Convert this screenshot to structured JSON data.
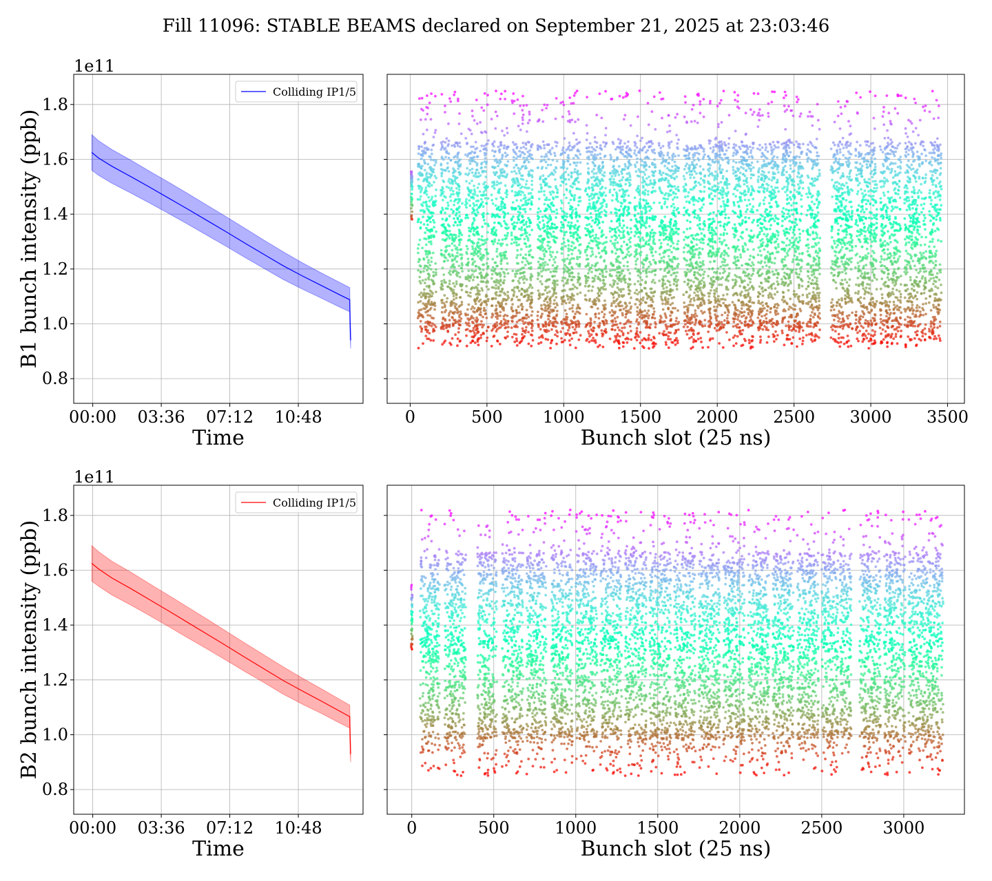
{
  "figure": {
    "suptitle": "Fill 11096: STABLE BEAMS declared on September 21, 2025 at 23:03:46"
  },
  "chart_data": [
    {
      "id": "b1-time",
      "type": "line",
      "beam": "B1",
      "color": "#0000ff",
      "xlabel": "Time",
      "ylabel": "B1 bunch intensity (ppb)",
      "y_offset_text": "1e11",
      "x_unit": "hours from 00:00",
      "xlim": [
        -1.0,
        14.2
      ],
      "ylim": [
        0.71,
        1.91
      ],
      "xticks": [
        0,
        3.6,
        7.2,
        10.8
      ],
      "xtick_labels": [
        "00:00",
        "03:36",
        "07:12",
        "10:48"
      ],
      "yticks": [
        0.8,
        1.0,
        1.2,
        1.4,
        1.6,
        1.8
      ],
      "ytick_labels": [
        "0.8",
        "1.0",
        "1.2",
        "1.4",
        "1.6",
        "1.8"
      ],
      "legend": {
        "label": "Colliding IP1/5",
        "position": "upper right"
      },
      "grid": true,
      "series": [
        {
          "name": "Colliding IP1/5",
          "x": [
            -0.05,
            0.3,
            1.0,
            2.0,
            3.0,
            4.0,
            5.0,
            6.0,
            7.0,
            8.0,
            9.0,
            10.0,
            11.0,
            12.0,
            13.0,
            13.5,
            13.52,
            13.55
          ],
          "y": [
            1.625,
            1.605,
            1.575,
            1.537,
            1.498,
            1.458,
            1.418,
            1.377,
            1.336,
            1.294,
            1.253,
            1.212,
            1.175,
            1.14,
            1.105,
            1.088,
            1.0,
            0.94
          ],
          "band_upper": [
            1.69,
            1.668,
            1.636,
            1.597,
            1.556,
            1.516,
            1.475,
            1.433,
            1.391,
            1.348,
            1.305,
            1.263,
            1.223,
            1.186,
            1.15,
            1.132,
            1.05,
            0.98
          ],
          "band_lower": [
            1.56,
            1.542,
            1.513,
            1.477,
            1.44,
            1.402,
            1.363,
            1.323,
            1.283,
            1.242,
            1.202,
            1.162,
            1.127,
            1.094,
            1.06,
            1.044,
            0.95,
            0.91
          ]
        }
      ]
    },
    {
      "id": "b1-bunch",
      "type": "scatter",
      "beam": "B1",
      "xlabel": "Bunch slot (25 ns)",
      "ylabel": "",
      "xlim": [
        -150,
        3610
      ],
      "ylim": [
        0.71,
        1.91
      ],
      "xticks": [
        0,
        500,
        1000,
        1500,
        2000,
        2500,
        3000,
        3500
      ],
      "xtick_labels": [
        "0",
        "500",
        "1000",
        "1500",
        "2000",
        "2500",
        "3000",
        "3500"
      ],
      "yticks": [
        0.8,
        1.0,
        1.2,
        1.4,
        1.6,
        1.8
      ],
      "grid": true,
      "colormap": "rainbow",
      "pilot": {
        "slot": 10,
        "ymin": 1.37,
        "ymax": 1.58
      },
      "intensity_range": [
        0.91,
        1.85
      ],
      "trains": [
        {
          "start": 50,
          "end": 170
        },
        {
          "start": 200,
          "end": 340
        },
        {
          "start": 360,
          "end": 510
        },
        {
          "start": 530,
          "end": 640
        },
        {
          "start": 660,
          "end": 800
        },
        {
          "start": 830,
          "end": 960
        },
        {
          "start": 980,
          "end": 1110
        },
        {
          "start": 1140,
          "end": 1280
        },
        {
          "start": 1300,
          "end": 1440
        },
        {
          "start": 1460,
          "end": 1600
        },
        {
          "start": 1620,
          "end": 1750
        },
        {
          "start": 1780,
          "end": 1920
        },
        {
          "start": 1940,
          "end": 2080
        },
        {
          "start": 2100,
          "end": 2240
        },
        {
          "start": 2260,
          "end": 2400
        },
        {
          "start": 2420,
          "end": 2560
        },
        {
          "start": 2580,
          "end": 2670
        },
        {
          "start": 2740,
          "end": 2880
        },
        {
          "start": 2900,
          "end": 3040
        },
        {
          "start": 3060,
          "end": 3200
        },
        {
          "start": 3220,
          "end": 3360
        },
        {
          "start": 3380,
          "end": 3460
        }
      ]
    },
    {
      "id": "b2-time",
      "type": "line",
      "beam": "B2",
      "color": "#ff0000",
      "xlabel": "Time",
      "ylabel": "B2 bunch intensity (ppb)",
      "y_offset_text": "1e11",
      "x_unit": "hours from 00:00",
      "xlim": [
        -1.0,
        14.2
      ],
      "ylim": [
        0.71,
        1.91
      ],
      "xticks": [
        0,
        3.6,
        7.2,
        10.8
      ],
      "xtick_labels": [
        "00:00",
        "03:36",
        "07:12",
        "10:48"
      ],
      "yticks": [
        0.8,
        1.0,
        1.2,
        1.4,
        1.6,
        1.8
      ],
      "ytick_labels": [
        "0.8",
        "1.0",
        "1.2",
        "1.4",
        "1.6",
        "1.8"
      ],
      "legend": {
        "label": "Colliding IP1/5",
        "position": "upper right"
      },
      "grid": true,
      "series": [
        {
          "name": "Colliding IP1/5",
          "x": [
            -0.05,
            0.3,
            1.0,
            2.0,
            3.0,
            4.0,
            5.0,
            6.0,
            7.0,
            8.0,
            9.0,
            10.0,
            11.0,
            12.0,
            13.0,
            13.5,
            13.52,
            13.55
          ],
          "y": [
            1.625,
            1.605,
            1.572,
            1.533,
            1.492,
            1.451,
            1.409,
            1.367,
            1.325,
            1.282,
            1.24,
            1.198,
            1.16,
            1.123,
            1.085,
            1.066,
            0.99,
            0.93
          ],
          "band_upper": [
            1.69,
            1.668,
            1.633,
            1.593,
            1.55,
            1.508,
            1.465,
            1.422,
            1.378,
            1.334,
            1.291,
            1.248,
            1.207,
            1.168,
            1.128,
            1.108,
            1.04,
            0.97
          ],
          "band_lower": [
            1.56,
            1.542,
            1.51,
            1.473,
            1.434,
            1.394,
            1.353,
            1.313,
            1.272,
            1.23,
            1.19,
            1.148,
            1.112,
            1.078,
            1.042,
            1.024,
            0.93,
            0.9
          ]
        }
      ]
    },
    {
      "id": "b2-bunch",
      "type": "scatter",
      "beam": "B2",
      "xlabel": "Bunch slot (25 ns)",
      "ylabel": "",
      "xlim": [
        -150,
        3370
      ],
      "ylim": [
        0.71,
        1.91
      ],
      "xticks": [
        0,
        500,
        1000,
        1500,
        2000,
        2500,
        3000
      ],
      "xtick_labels": [
        "0",
        "500",
        "1000",
        "1500",
        "2000",
        "2500",
        "3000"
      ],
      "yticks": [
        0.8,
        1.0,
        1.2,
        1.4,
        1.6,
        1.8
      ],
      "grid": true,
      "colormap": "rainbow",
      "pilot": {
        "slot": 0,
        "ymin": 1.31,
        "ymax": 1.55
      },
      "intensity_range": [
        0.85,
        1.82
      ],
      "trains": [
        {
          "start": 50,
          "end": 170
        },
        {
          "start": 200,
          "end": 330
        },
        {
          "start": 400,
          "end": 520
        },
        {
          "start": 550,
          "end": 680
        },
        {
          "start": 700,
          "end": 820
        },
        {
          "start": 850,
          "end": 980
        },
        {
          "start": 1000,
          "end": 1130
        },
        {
          "start": 1150,
          "end": 1280
        },
        {
          "start": 1300,
          "end": 1430
        },
        {
          "start": 1450,
          "end": 1580
        },
        {
          "start": 1600,
          "end": 1730
        },
        {
          "start": 1750,
          "end": 1880
        },
        {
          "start": 1900,
          "end": 2030
        },
        {
          "start": 2050,
          "end": 2180
        },
        {
          "start": 2200,
          "end": 2330
        },
        {
          "start": 2350,
          "end": 2480
        },
        {
          "start": 2500,
          "end": 2600
        },
        {
          "start": 2610,
          "end": 2680
        },
        {
          "start": 2730,
          "end": 2860
        },
        {
          "start": 2880,
          "end": 3010
        },
        {
          "start": 3030,
          "end": 3160
        },
        {
          "start": 3160,
          "end": 3240
        }
      ]
    }
  ]
}
